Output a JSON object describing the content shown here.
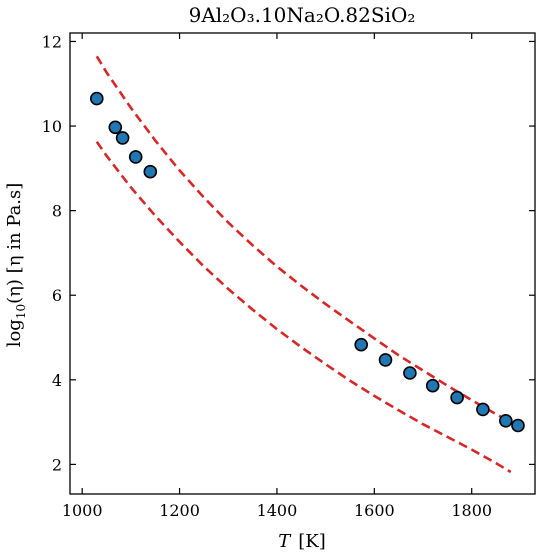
{
  "chart_data": {
    "type": "scatter",
    "title": "9Al₂O₃.10Na₂O.82SiO₂",
    "xlabel_var": "T",
    "xlabel_unit": "[K]",
    "ylabel_pre": "log",
    "ylabel_sub": "10",
    "ylabel_post": "(η)  [η in Pa.s]",
    "xlim": [
      975,
      1930
    ],
    "ylim": [
      1.3,
      12.2
    ],
    "x_ticks": [
      1000,
      1200,
      1400,
      1600,
      1800
    ],
    "y_ticks": [
      2,
      4,
      6,
      8,
      10,
      12
    ],
    "grid": false,
    "colors": {
      "points_fill": "#1f77b4",
      "points_edge": "#000000",
      "bounds": "#d62728"
    },
    "points": [
      {
        "x": 1030,
        "y": 10.65
      },
      {
        "x": 1068,
        "y": 9.97
      },
      {
        "x": 1083,
        "y": 9.72
      },
      {
        "x": 1110,
        "y": 9.27
      },
      {
        "x": 1140,
        "y": 8.92
      },
      {
        "x": 1573,
        "y": 4.83
      },
      {
        "x": 1623,
        "y": 4.47
      },
      {
        "x": 1673,
        "y": 4.16
      },
      {
        "x": 1720,
        "y": 3.86
      },
      {
        "x": 1770,
        "y": 3.58
      },
      {
        "x": 1823,
        "y": 3.3
      },
      {
        "x": 1870,
        "y": 3.03
      },
      {
        "x": 1895,
        "y": 2.92
      }
    ],
    "series": [
      {
        "style": "dashed",
        "x": [
          1030,
          1050,
          1100,
          1150,
          1200,
          1250,
          1300,
          1350,
          1400,
          1450,
          1500,
          1550,
          1600,
          1650,
          1700,
          1750,
          1800,
          1850,
          1880
        ],
        "y": [
          11.65,
          11.27,
          10.43,
          9.66,
          8.95,
          8.31,
          7.72,
          7.18,
          6.68,
          6.22,
          5.79,
          5.38,
          4.98,
          4.58,
          4.22,
          3.86,
          3.52,
          3.19,
          3.0
        ]
      },
      {
        "style": "dashed",
        "x": [
          1030,
          1050,
          1100,
          1150,
          1200,
          1250,
          1300,
          1350,
          1400,
          1450,
          1500,
          1550,
          1600,
          1650,
          1700,
          1750,
          1800,
          1850,
          1880
        ],
        "y": [
          9.63,
          9.3,
          8.55,
          7.88,
          7.26,
          6.68,
          6.15,
          5.66,
          5.2,
          4.77,
          4.37,
          3.98,
          3.62,
          3.28,
          2.95,
          2.65,
          2.35,
          2.03,
          1.82
        ]
      }
    ]
  }
}
